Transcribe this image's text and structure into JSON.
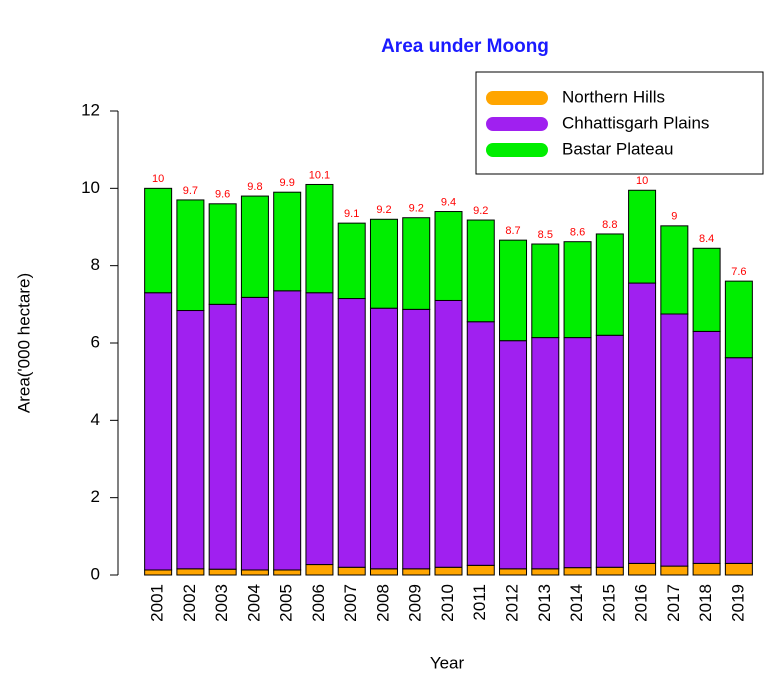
{
  "chart_data": {
    "type": "stacked_bar",
    "title": "Area under Moong",
    "x_label": "Year",
    "y_label": "Area('000 hectare)",
    "categories": [
      "2001",
      "2002",
      "2003",
      "2004",
      "2005",
      "2006",
      "2007",
      "2008",
      "2009",
      "2010",
      "2011",
      "2012",
      "2013",
      "2014",
      "2015",
      "2016",
      "2017",
      "2018",
      "2019"
    ],
    "series": [
      {
        "name": "Northern Hills",
        "color": "#FFA500",
        "values": [
          0.13,
          0.16,
          0.15,
          0.13,
          0.13,
          0.27,
          0.2,
          0.16,
          0.16,
          0.2,
          0.25,
          0.16,
          0.16,
          0.19,
          0.2,
          0.3,
          0.23,
          0.3,
          0.3
        ]
      },
      {
        "name": "Chhattisgarh Plains",
        "color": "#A020F0",
        "values": [
          7.17,
          6.68,
          6.85,
          7.05,
          7.22,
          7.03,
          6.95,
          6.74,
          6.71,
          6.9,
          6.3,
          5.9,
          5.98,
          5.95,
          6.0,
          7.25,
          6.52,
          6.0,
          5.32
        ]
      },
      {
        "name": "Bastar Plateau",
        "color": "#00EE00",
        "values": [
          2.7,
          2.86,
          2.6,
          2.62,
          2.55,
          2.8,
          1.95,
          2.3,
          2.37,
          2.3,
          2.63,
          2.6,
          2.42,
          2.48,
          2.62,
          2.4,
          2.28,
          2.15,
          1.98
        ]
      }
    ],
    "totals": [
      10,
      9.7,
      9.6,
      9.8,
      9.9,
      10.1,
      9.1,
      9.2,
      9.2,
      9.4,
      9.2,
      8.7,
      8.5,
      8.6,
      8.8,
      10,
      9,
      8.4,
      7.6
    ],
    "total_color": "#FF0000",
    "ylim": [
      0,
      12
    ],
    "yticks": [
      0,
      2,
      4,
      6,
      8,
      10,
      12
    ],
    "legend": "top-right"
  }
}
